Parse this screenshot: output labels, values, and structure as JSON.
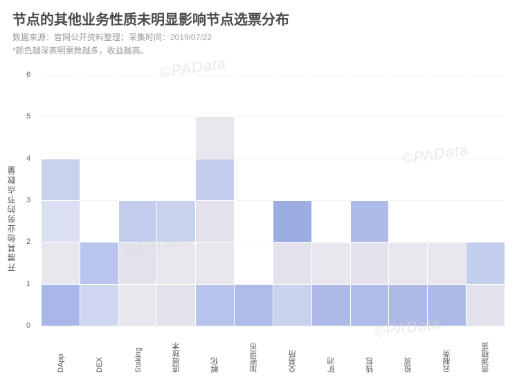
{
  "header": {
    "title": "节点的其他业务性质未明显影响节点选票分布",
    "subtitle": "数据来源：官网公开资料整理；采集时间：2019/07/22",
    "note": "*颜色越深表明票数越多，收益越高。"
  },
  "chart": {
    "type": "heatmap-column",
    "y_axis_label": "开展其他业务的节点数量",
    "ylim": [
      0,
      6.3
    ],
    "yticks": [
      0,
      1,
      2,
      3,
      4,
      5,
      6
    ],
    "categories": [
      "DApp",
      "DEX",
      "Staking",
      "底层技术",
      "孵化",
      "加密货币",
      "交易所",
      "矿池",
      "钱包",
      "投资",
      "云服务",
      "资源租赁"
    ],
    "cell_height_units": 1,
    "columns": [
      {
        "cells": [
          {
            "y": 0,
            "color": "#a9b7e8"
          },
          {
            "y": 1,
            "color": "#e8e7ee"
          },
          {
            "y": 2,
            "color": "#dadff2"
          },
          {
            "y": 3,
            "color": "#c8d1ee"
          }
        ]
      },
      {
        "cells": [
          {
            "y": 0,
            "color": "#cfd7f0"
          },
          {
            "y": 1,
            "color": "#b9c5ec"
          }
        ]
      },
      {
        "cells": [
          {
            "y": 0,
            "color": "#e8e7ee"
          },
          {
            "y": 1,
            "color": "#e3e2ec"
          },
          {
            "y": 2,
            "color": "#c3cded"
          }
        ]
      },
      {
        "cells": [
          {
            "y": 0,
            "color": "#e3e2ec"
          },
          {
            "y": 1,
            "color": "#e8e7ee"
          },
          {
            "y": 2,
            "color": "#c8d1ee"
          }
        ]
      },
      {
        "cells": [
          {
            "y": 0,
            "color": "#b6c3eb"
          },
          {
            "y": 1,
            "color": "#e8e7ee"
          },
          {
            "y": 2,
            "color": "#e3e2ec"
          },
          {
            "y": 3,
            "color": "#c3cded"
          },
          {
            "y": 4,
            "color": "#e8e7ee"
          }
        ]
      },
      {
        "cells": [
          {
            "y": 0,
            "color": "#afbce9"
          }
        ]
      },
      {
        "cells": [
          {
            "y": 0,
            "color": "#c8d1ee"
          },
          {
            "y": 1,
            "color": "#e3e2ec"
          },
          {
            "y": 2,
            "color": "#9cade4"
          }
        ]
      },
      {
        "cells": [
          {
            "y": 0,
            "color": "#adbae8"
          },
          {
            "y": 1,
            "color": "#e8e7ee"
          }
        ]
      },
      {
        "cells": [
          {
            "y": 0,
            "color": "#afbce9"
          },
          {
            "y": 1,
            "color": "#e3e2ec"
          },
          {
            "y": 2,
            "color": "#aebbe9"
          }
        ]
      },
      {
        "cells": [
          {
            "y": 0,
            "color": "#adbae8"
          },
          {
            "y": 1,
            "color": "#e8e7ee"
          }
        ]
      },
      {
        "cells": [
          {
            "y": 0,
            "color": "#adbae8"
          },
          {
            "y": 1,
            "color": "#e8e7ee"
          }
        ]
      },
      {
        "cells": [
          {
            "y": 0,
            "color": "#e3e2ec"
          },
          {
            "y": 1,
            "color": "#c3cded"
          }
        ]
      }
    ],
    "background_color": "#ffffff",
    "grid_color": "#f0f0f0",
    "font_size_axis": 11,
    "font_size_ylabel": 12
  },
  "watermark": {
    "text": "©PAData"
  }
}
